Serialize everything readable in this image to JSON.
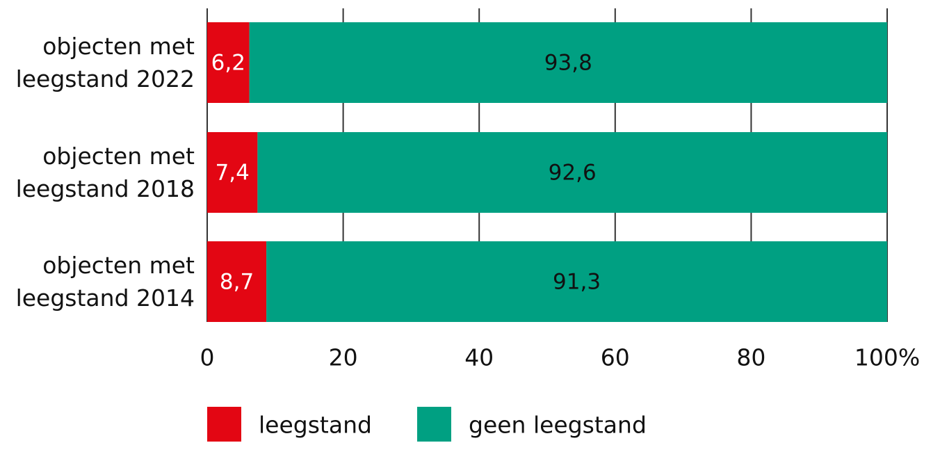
{
  "chart_data": {
    "type": "stacked-bar-horizontal",
    "categories": [
      "objecten met leegstand 2022",
      "objecten met leegstand 2018",
      "objecten met leegstand 2014"
    ],
    "series": [
      {
        "name": "leegstand",
        "color": "#e30613",
        "label_color": "#ffffff",
        "values": [
          6.2,
          7.4,
          8.7
        ],
        "value_labels": [
          "6,2",
          "7,4",
          "8,7"
        ]
      },
      {
        "name": "geen leegstand",
        "color": "#00a082",
        "label_color": "#111111",
        "values": [
          93.8,
          92.6,
          91.3
        ],
        "value_labels": [
          "93,8",
          "92,6",
          "91,3"
        ]
      }
    ],
    "xlim": [
      0,
      100
    ],
    "xticks": [
      0,
      20,
      40,
      60,
      80,
      {
        "value": 100,
        "label": "100%"
      }
    ],
    "grid": true
  }
}
